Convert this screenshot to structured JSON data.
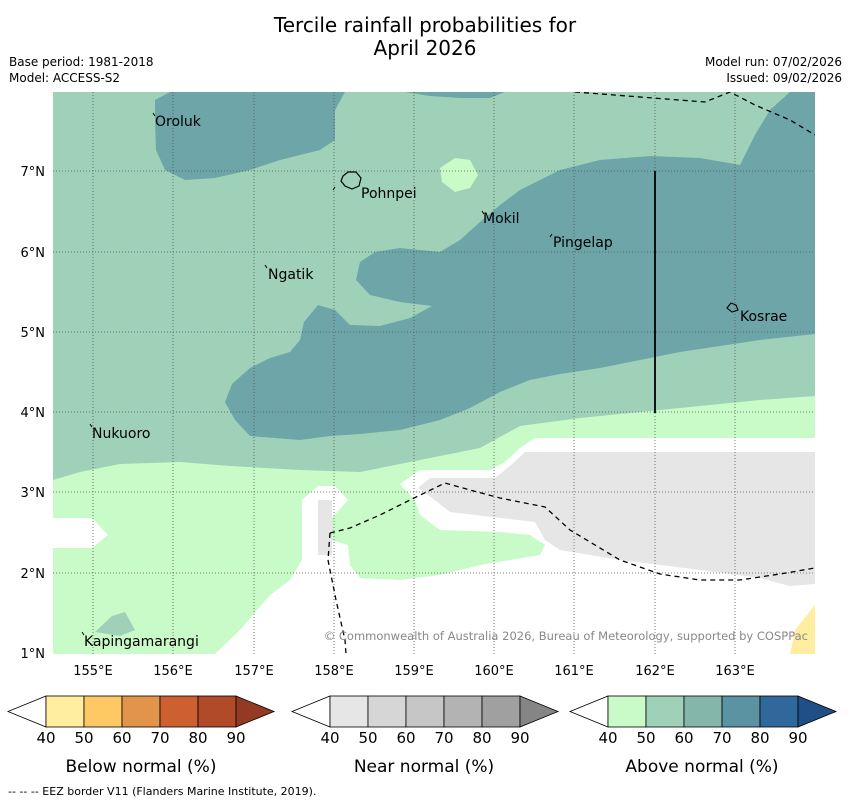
{
  "title": {
    "line1": "Tercile rainfall probabilities for",
    "line2": "April 2026"
  },
  "meta": {
    "base_period": "Base period: 1981-2018",
    "model": "Model: ACCESS-S2",
    "model_run": "Model run: 07/02/2026",
    "issued": "Issued: 09/02/2026"
  },
  "axes": {
    "lat_labels": [
      "7°N",
      "6°N",
      "5°N",
      "4°N",
      "3°N",
      "2°N",
      "1°N"
    ],
    "lon_labels": [
      "155°E",
      "156°E",
      "157°E",
      "158°E",
      "159°E",
      "160°E",
      "161°E",
      "162°E",
      "163°E"
    ]
  },
  "places": [
    "Oroluk",
    "Pohnpei",
    "Mokil",
    "Pingelap",
    "Ngatik",
    "Kosrae",
    "Nukuoro",
    "Kapingamarangi"
  ],
  "copyright": "© Commonwealth of Australia 2026, Bureau of Meteorology, supported by COSPPac",
  "legends": {
    "ticks": [
      "40",
      "50",
      "60",
      "70",
      "80",
      "90"
    ],
    "below": {
      "label": "Below normal (%)",
      "colors": [
        "#ffeda0",
        "#fec965",
        "#e2944a",
        "#cc6030",
        "#b04a28",
        "#933a22"
      ]
    },
    "near": {
      "label": "Near normal (%)",
      "colors": [
        "#e6e6e6",
        "#d6d6d6",
        "#c6c6c6",
        "#b3b3b3",
        "#a0a0a0",
        "#858585"
      ]
    },
    "above": {
      "label": "Above normal (%)",
      "colors": [
        "#c9fbc8",
        "#9ed1b8",
        "#84b7a9",
        "#5b93a2",
        "#31689b",
        "#1f4f86"
      ]
    }
  },
  "footer": "-- -- -- EEZ border V11 (Flanders Marine Institute, 2019)."
}
